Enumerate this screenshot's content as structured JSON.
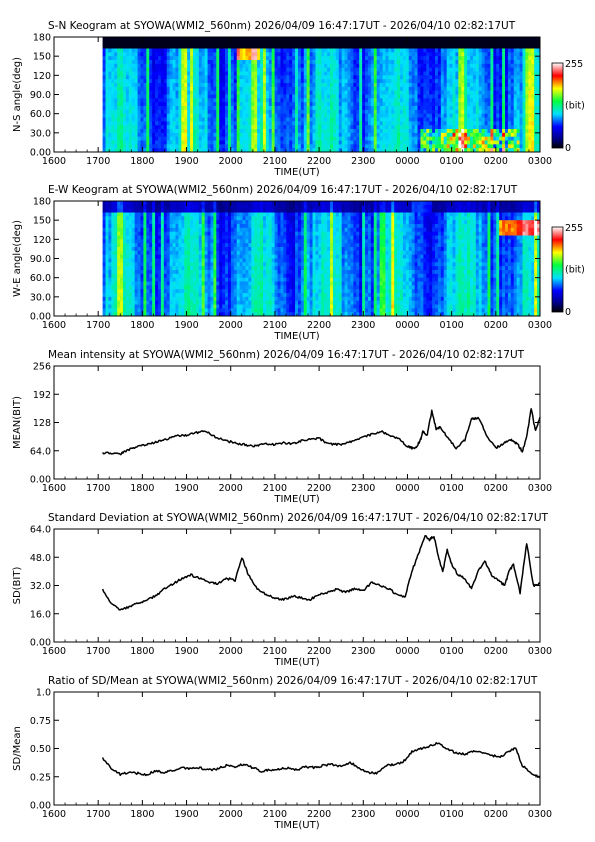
{
  "chart_data": [
    {
      "type": "heatmap",
      "title": "S-N Keogram at SYOWA(WMI2_560nm)     2026/04/09 16:47:17UT - 2026/04/10 02:82:17UT",
      "xlabel": "TIME(UT)",
      "ylabel": "N-S angle(deg)",
      "x_ticks": [
        "1600",
        "1700",
        "1800",
        "1900",
        "2000",
        "2100",
        "2200",
        "2300",
        "0000",
        "0100",
        "0200",
        "0300"
      ],
      "y_ticks": [
        "0.00",
        "30.0",
        "60.0",
        "90.0",
        "120",
        "150",
        "180"
      ],
      "ylim": [
        0,
        180
      ],
      "data_start_tick": 1.1,
      "colorbar": {
        "max": "255",
        "unit": "(bit)",
        "min": "0"
      }
    },
    {
      "type": "heatmap",
      "title": "E-W Keogram at SYOWA(WMI2_560nm)     2026/04/09 16:47:17UT - 2026/04/10 02:82:17UT",
      "xlabel": "TIME(UT)",
      "ylabel": "W-E angle(deg)",
      "x_ticks": [
        "1600",
        "1700",
        "1800",
        "1900",
        "2000",
        "2100",
        "2200",
        "2300",
        "0000",
        "0100",
        "0200",
        "0300"
      ],
      "y_ticks": [
        "0.00",
        "30.0",
        "60.0",
        "90.0",
        "120",
        "150",
        "180"
      ],
      "ylim": [
        0,
        180
      ],
      "data_start_tick": 1.1,
      "colorbar": {
        "max": "255",
        "unit": "(bit)",
        "min": "0"
      }
    },
    {
      "type": "line",
      "title": "Mean intensity at SYOWA(WMI2_560nm)     2026/04/09 16:47:17UT - 2026/04/10 02:82:17UT",
      "xlabel": "TIME(UT)",
      "ylabel": "MEAN(BIT)",
      "x_ticks": [
        "1600",
        "1700",
        "1800",
        "1900",
        "2000",
        "2100",
        "2200",
        "2300",
        "0000",
        "0100",
        "0200",
        "0300"
      ],
      "y_ticks": [
        "0.00",
        "64.0",
        "128",
        "192",
        "256"
      ],
      "ylim": [
        0,
        256
      ],
      "series": [
        {
          "x": [
            1.1,
            1.3,
            1.5,
            1.6,
            1.8,
            2.0,
            2.2,
            2.4,
            2.6,
            2.8,
            3.0,
            3.2,
            3.4,
            3.6,
            3.8,
            4.0,
            4.2,
            4.4,
            4.6,
            4.8,
            5.0,
            5.2,
            5.4,
            5.6,
            5.8,
            6.0,
            6.2,
            6.4,
            6.6,
            6.8,
            7.0,
            7.2,
            7.4,
            7.6,
            7.8,
            8.0,
            8.1,
            8.2,
            8.3,
            8.35,
            8.45,
            8.55,
            8.65,
            8.75,
            8.9,
            9.1,
            9.3,
            9.45,
            9.6,
            9.8,
            10.0,
            10.2,
            10.35,
            10.5,
            10.6,
            10.7,
            10.8,
            10.9,
            11.0
          ],
          "y": [
            60,
            58,
            57,
            62,
            70,
            76,
            80,
            86,
            92,
            98,
            100,
            104,
            110,
            98,
            90,
            84,
            80,
            76,
            75,
            80,
            78,
            82,
            80,
            86,
            90,
            92,
            80,
            78,
            80,
            88,
            94,
            102,
            108,
            100,
            92,
            74,
            70,
            72,
            90,
            108,
            100,
            155,
            112,
            118,
            95,
            70,
            88,
            135,
            140,
            98,
            70,
            82,
            88,
            78,
            62,
            95,
            160,
            108,
            140
          ]
        }
      ]
    },
    {
      "type": "line",
      "title": "Standard Deviation at SYOWA(WMI2_560nm)     2026/04/09 16:47:17UT - 2026/04/10 02:82:17UT",
      "xlabel": "TIME(UT)",
      "ylabel": "SD(BIT)",
      "x_ticks": [
        "1600",
        "1700",
        "1800",
        "1900",
        "2000",
        "2100",
        "2200",
        "2300",
        "0000",
        "0100",
        "0200",
        "0300"
      ],
      "y_ticks": [
        "0.00",
        "16.0",
        "32.0",
        "48.0",
        "64.0"
      ],
      "ylim": [
        0,
        64
      ],
      "series": [
        {
          "x": [
            1.1,
            1.3,
            1.5,
            1.7,
            1.9,
            2.1,
            2.3,
            2.5,
            2.7,
            2.9,
            3.1,
            3.3,
            3.5,
            3.7,
            3.9,
            4.1,
            4.25,
            4.4,
            4.6,
            4.8,
            5.0,
            5.2,
            5.4,
            5.6,
            5.8,
            6.0,
            6.2,
            6.4,
            6.6,
            6.8,
            7.0,
            7.2,
            7.4,
            7.6,
            7.8,
            7.95,
            8.1,
            8.25,
            8.4,
            8.5,
            8.6,
            8.7,
            8.8,
            8.9,
            9.0,
            9.15,
            9.3,
            9.45,
            9.6,
            9.75,
            9.9,
            10.05,
            10.2,
            10.3,
            10.4,
            10.55,
            10.7,
            10.85,
            11.0
          ],
          "y": [
            30,
            22,
            18,
            20,
            22,
            24,
            26,
            30,
            33,
            36,
            38,
            36,
            34,
            33,
            36,
            35,
            48,
            38,
            30,
            27,
            25,
            24,
            26,
            25,
            24,
            27,
            28,
            30,
            28,
            30,
            29,
            34,
            32,
            30,
            26,
            26,
            40,
            50,
            60,
            58,
            60,
            48,
            40,
            52,
            44,
            38,
            36,
            30,
            40,
            46,
            38,
            35,
            32,
            40,
            44,
            28,
            56,
            32,
            33
          ]
        }
      ]
    },
    {
      "type": "line",
      "title": "Ratio of SD/Mean at SYOWA(WMI2_560nm)     2026/04/09 16:47:17UT - 2026/04/10 02:82:17UT",
      "xlabel": "TIME(UT)",
      "ylabel": "SD/Mean",
      "x_ticks": [
        "1600",
        "1700",
        "1800",
        "1900",
        "2000",
        "2100",
        "2200",
        "2300",
        "0000",
        "0100",
        "0200",
        "0300"
      ],
      "y_ticks": [
        "0.00",
        "0.25",
        "0.50",
        "0.75",
        "1.0"
      ],
      "ylim": [
        0,
        1
      ],
      "series": [
        {
          "x": [
            1.1,
            1.3,
            1.5,
            1.7,
            1.9,
            2.1,
            2.3,
            2.5,
            2.7,
            2.9,
            3.1,
            3.3,
            3.5,
            3.7,
            3.9,
            4.1,
            4.3,
            4.5,
            4.7,
            4.9,
            5.1,
            5.3,
            5.5,
            5.7,
            5.9,
            6.1,
            6.3,
            6.5,
            6.7,
            6.9,
            7.1,
            7.3,
            7.5,
            7.7,
            7.9,
            8.1,
            8.3,
            8.5,
            8.7,
            8.9,
            9.1,
            9.3,
            9.5,
            9.7,
            9.9,
            10.1,
            10.3,
            10.45,
            10.6,
            10.8,
            11.0
          ],
          "y": [
            0.42,
            0.32,
            0.27,
            0.29,
            0.28,
            0.27,
            0.3,
            0.29,
            0.31,
            0.33,
            0.32,
            0.33,
            0.31,
            0.32,
            0.35,
            0.34,
            0.36,
            0.33,
            0.3,
            0.31,
            0.32,
            0.33,
            0.31,
            0.34,
            0.33,
            0.35,
            0.36,
            0.34,
            0.38,
            0.33,
            0.29,
            0.28,
            0.35,
            0.36,
            0.38,
            0.47,
            0.5,
            0.52,
            0.55,
            0.5,
            0.46,
            0.45,
            0.48,
            0.46,
            0.44,
            0.42,
            0.48,
            0.5,
            0.35,
            0.28,
            0.24
          ]
        }
      ]
    }
  ]
}
